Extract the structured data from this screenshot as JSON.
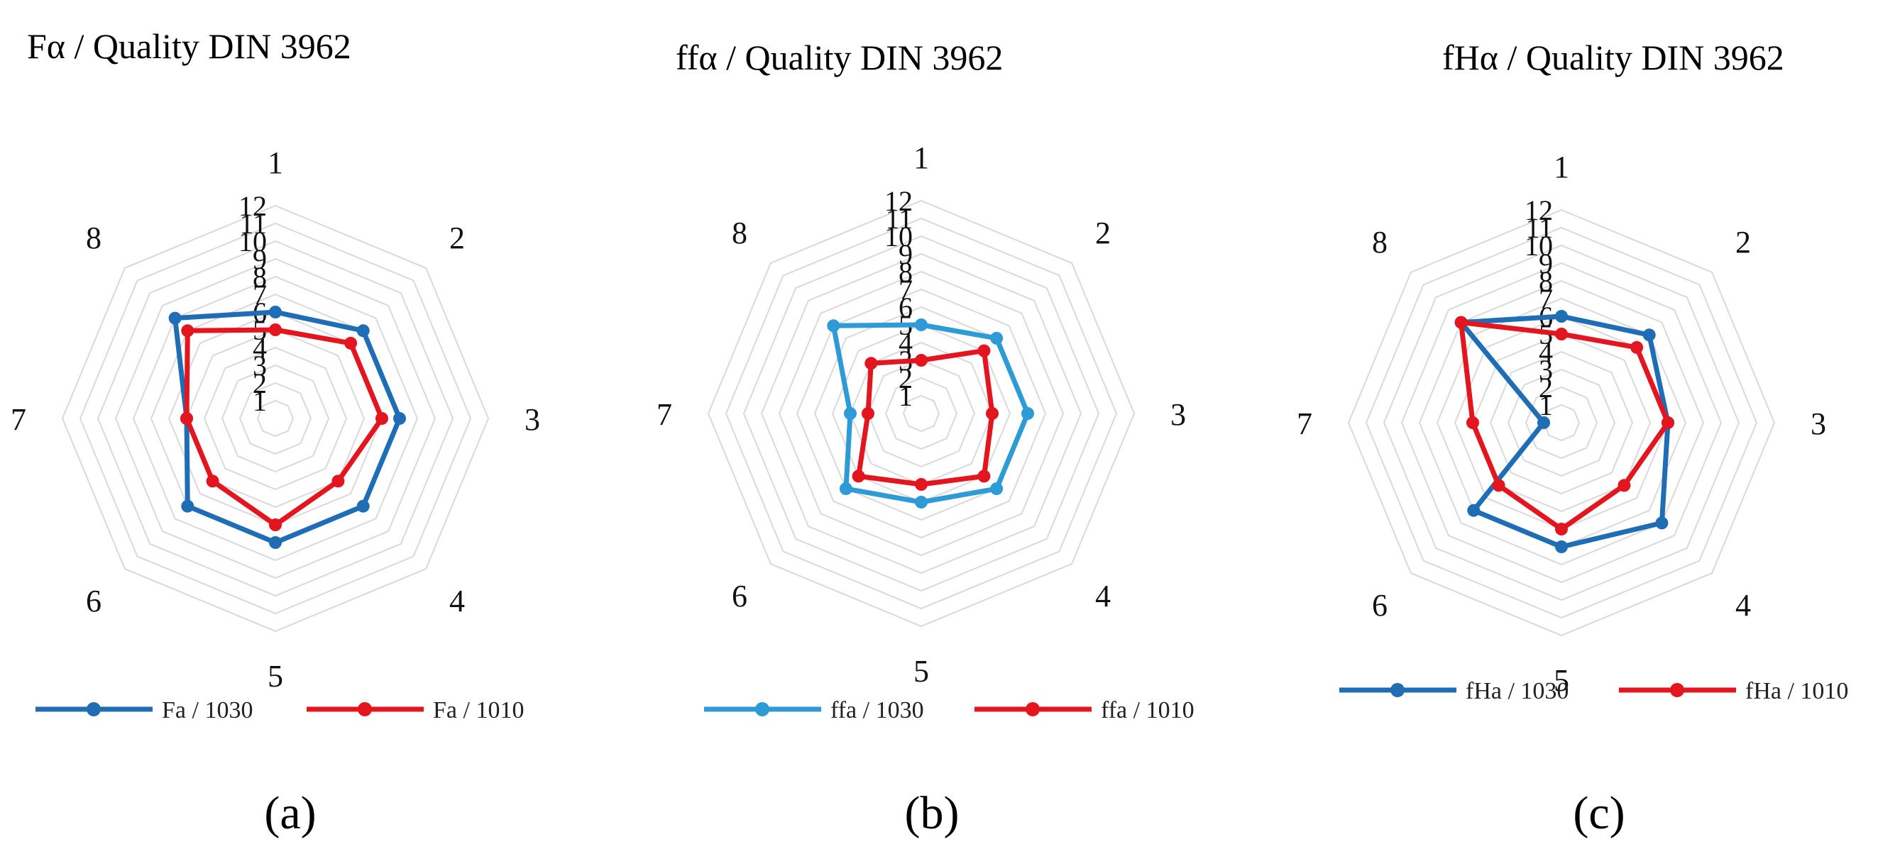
{
  "figure": {
    "panels": [
      {
        "title": "Fα / Quality DIN 3962",
        "label": "(a)"
      },
      {
        "title": "ffα / Quality DIN 3962",
        "label": "(b)"
      },
      {
        "title": "fHα / Quality DIN 3962",
        "label": "(c)"
      }
    ]
  },
  "chart_data": [
    {
      "type": "radar",
      "title": "Fα / Quality DIN 3962",
      "subfigure_label": "(a)",
      "categories": [
        "1",
        "2",
        "3",
        "4",
        "5",
        "6",
        "7",
        "8"
      ],
      "radial_ticks": [
        "1",
        "2",
        "3",
        "4",
        "5",
        "6",
        "7",
        "8",
        "9",
        "10",
        "11",
        "12"
      ],
      "rlim": [
        0,
        12
      ],
      "grid": true,
      "legend_position": "bottom",
      "series": [
        {
          "name": "Fa / 1030",
          "color": "#1f6eb5",
          "values": [
            6,
            7,
            7,
            7,
            7,
            7,
            5,
            8
          ]
        },
        {
          "name": "Fa / 1010",
          "color": "#e3151f",
          "values": [
            5,
            6,
            6,
            5,
            6,
            5,
            5,
            7
          ]
        }
      ]
    },
    {
      "type": "radar",
      "title": "ffα / Quality DIN 3962",
      "subfigure_label": "(b)",
      "categories": [
        "1",
        "2",
        "3",
        "4",
        "5",
        "6",
        "7",
        "8"
      ],
      "radial_ticks": [
        "1",
        "2",
        "3",
        "4",
        "5",
        "6",
        "7",
        "8",
        "9",
        "10",
        "11",
        "12"
      ],
      "rlim": [
        0,
        12
      ],
      "grid": true,
      "legend_position": "bottom",
      "series": [
        {
          "name": "ffa / 1030",
          "color": "#2e9ad6",
          "values": [
            5,
            6,
            6,
            6,
            5,
            6,
            4,
            7
          ]
        },
        {
          "name": "ffa / 1010",
          "color": "#e3151f",
          "values": [
            3,
            5,
            4,
            5,
            4,
            5,
            3,
            4
          ]
        }
      ]
    },
    {
      "type": "radar",
      "title": "fHα / Quality DIN 3962",
      "subfigure_label": "(c)",
      "categories": [
        "1",
        "2",
        "3",
        "4",
        "5",
        "6",
        "7",
        "8"
      ],
      "radial_ticks": [
        "1",
        "2",
        "3",
        "4",
        "5",
        "6",
        "7",
        "8",
        "9",
        "10",
        "11",
        "12"
      ],
      "rlim": [
        0,
        12
      ],
      "grid": true,
      "legend_position": "bottom",
      "series": [
        {
          "name": "fHa / 1030",
          "color": "#1f6eb5",
          "values": [
            6,
            7,
            6,
            8,
            7,
            7,
            1,
            8
          ]
        },
        {
          "name": "fHa / 1010",
          "color": "#e3151f",
          "values": [
            5,
            6,
            6,
            5,
            6,
            5,
            5,
            8
          ]
        }
      ]
    }
  ]
}
